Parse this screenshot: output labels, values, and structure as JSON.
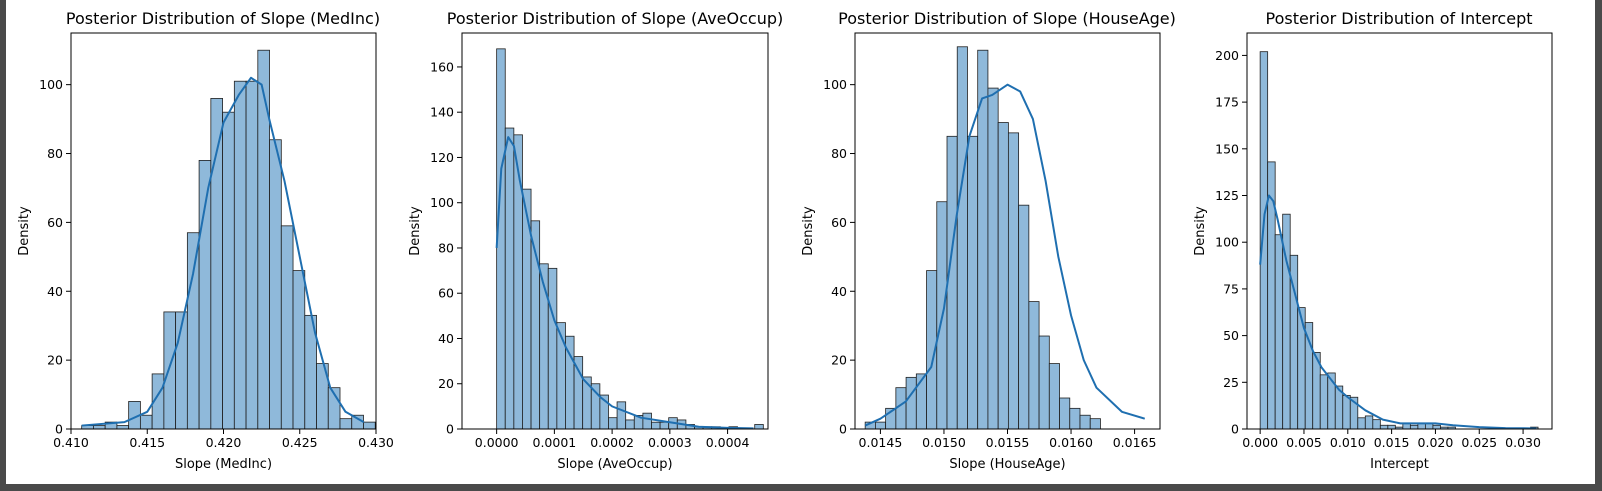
{
  "style": {
    "bar_fill": "#8fb9da",
    "bar_stroke": "#1f1f1f",
    "kde_color": "#1f6fb0"
  },
  "chart_data": [
    {
      "type": "bar",
      "title": "Posterior Distribution of Slope (MedInc)",
      "xlabel": "Slope (MedInc)",
      "ylabel": "Density",
      "xlim": [
        0.41,
        0.43
      ],
      "ylim": [
        0,
        115
      ],
      "xticks": [
        0.41,
        0.415,
        0.42,
        0.425,
        0.43
      ],
      "xtick_labels": [
        "0.410",
        "0.415",
        "0.420",
        "0.425",
        "0.430"
      ],
      "yticks": [
        0,
        20,
        40,
        60,
        80,
        100
      ],
      "yticks_labels": [
        "0",
        "20",
        "40",
        "60",
        "80",
        "100"
      ],
      "bin_start": 0.4107,
      "bin_width": 0.00077,
      "values": [
        1,
        1,
        2,
        1,
        8,
        4,
        16,
        34,
        34,
        57,
        78,
        96,
        92,
        101,
        101,
        110,
        84,
        59,
        46,
        33,
        19,
        12,
        3,
        4,
        2
      ],
      "kde_x": [
        0.4107,
        0.4135,
        0.415,
        0.416,
        0.417,
        0.418,
        0.419,
        0.42,
        0.421,
        0.4218,
        0.4225,
        0.423,
        0.424,
        0.425,
        0.426,
        0.427,
        0.428,
        0.4292
      ],
      "kde_y": [
        1,
        2,
        5,
        12,
        25,
        45,
        70,
        89,
        97,
        102,
        100,
        90,
        72,
        50,
        28,
        12,
        5,
        2
      ]
    },
    {
      "type": "bar",
      "title": "Posterior Distribution of Slope (AveOccup)",
      "xlabel": "Slope (AveOccup)",
      "ylabel": "Density",
      "xlim": [
        -6e-05,
        0.00047
      ],
      "ylim": [
        0,
        175
      ],
      "xticks": [
        0,
        0.0001,
        0.0002,
        0.0003,
        0.0004
      ],
      "xtick_labels": [
        "0.0000",
        "0.0001",
        "0.0002",
        "0.0003",
        "0.0004"
      ],
      "yticks": [
        0,
        20,
        40,
        60,
        80,
        100,
        120,
        140,
        160
      ],
      "yticks_labels": [
        "0",
        "20",
        "40",
        "60",
        "80",
        "100",
        "120",
        "140",
        "160"
      ],
      "bin_start": 0.0,
      "bin_width": 1.49e-05,
      "values": [
        168,
        133,
        130,
        106,
        92,
        73,
        71,
        47,
        41,
        32,
        23,
        20,
        15,
        5,
        12,
        4,
        6,
        7,
        3,
        3,
        5,
        4,
        2,
        1,
        1,
        1,
        0,
        1,
        0,
        0,
        2
      ],
      "kde_x": [
        0.0,
        8e-06,
        2e-05,
        3e-05,
        4e-05,
        6e-05,
        8e-05,
        0.0001,
        0.00012,
        0.00015,
        0.00018,
        0.0002,
        0.00025,
        0.0003,
        0.00035,
        0.0004,
        0.000445
      ],
      "kde_y": [
        80,
        115,
        129,
        125,
        110,
        85,
        65,
        48,
        36,
        22,
        14,
        10,
        5,
        3,
        1,
        0.5,
        0.3
      ]
    },
    {
      "type": "bar",
      "title": "Posterior Distribution of Slope (HouseAge)",
      "xlabel": "Slope (HouseAge)",
      "ylabel": "Density",
      "xlim": [
        0.0143,
        0.0167
      ],
      "ylim": [
        0,
        115
      ],
      "xticks": [
        0.0145,
        0.015,
        0.0155,
        0.016,
        0.0165
      ],
      "xtick_labels": [
        "0.0145",
        "0.0150",
        "0.0155",
        "0.0160",
        "0.0165"
      ],
      "yticks": [
        0,
        20,
        40,
        60,
        80,
        100
      ],
      "yticks_labels": [
        "0",
        "20",
        "40",
        "60",
        "80",
        "100"
      ],
      "bin_start": 0.01438,
      "bin_width": 8.05e-05,
      "values": [
        2,
        2,
        6,
        12,
        15,
        16,
        46,
        66,
        85,
        111,
        85,
        110,
        99,
        89,
        86,
        65,
        37,
        27,
        19,
        9,
        6,
        4,
        3
      ],
      "kde_x": [
        0.01438,
        0.0145,
        0.0147,
        0.0149,
        0.015,
        0.0151,
        0.0152,
        0.0153,
        0.01538,
        0.0155,
        0.0156,
        0.0157,
        0.0158,
        0.0159,
        0.016,
        0.0161,
        0.0162,
        0.0164,
        0.01658
      ],
      "kde_y": [
        1,
        3,
        8,
        18,
        35,
        62,
        85,
        96,
        97,
        100,
        98,
        90,
        72,
        50,
        33,
        20,
        12,
        5,
        3
      ]
    },
    {
      "type": "bar",
      "title": "Posterior Distribution of Intercept",
      "xlabel": "Intercept",
      "ylabel": "Density",
      "xlim": [
        -0.0015,
        0.0333
      ],
      "ylim": [
        0,
        212
      ],
      "xticks": [
        0,
        0.005,
        0.01,
        0.015,
        0.02,
        0.025,
        0.03
      ],
      "xtick_labels": [
        "0.000",
        "0.005",
        "0.010",
        "0.015",
        "0.020",
        "0.025",
        "0.030"
      ],
      "yticks": [
        0,
        25,
        50,
        75,
        100,
        125,
        150,
        175,
        200
      ],
      "yticks_labels": [
        "0",
        "25",
        "50",
        "75",
        "100",
        "125",
        "150",
        "175",
        "200"
      ],
      "bin_start": 0.0,
      "bin_width": 0.000857,
      "values": [
        202,
        143,
        104,
        115,
        93,
        65,
        57,
        41,
        29,
        30,
        23,
        18,
        17,
        6,
        7,
        5,
        2,
        2,
        1,
        3,
        2,
        3,
        3,
        2,
        1,
        1,
        0,
        0,
        0,
        0,
        0,
        0,
        0,
        0,
        0,
        0,
        1
      ],
      "kde_x": [
        0.0,
        0.0005,
        0.001,
        0.0015,
        0.002,
        0.003,
        0.004,
        0.005,
        0.006,
        0.007,
        0.008,
        0.009,
        0.01,
        0.012,
        0.014,
        0.016,
        0.018,
        0.02,
        0.022,
        0.025,
        0.028,
        0.0315
      ],
      "kde_y": [
        88,
        115,
        125,
        122,
        112,
        90,
        72,
        54,
        42,
        33,
        27,
        21,
        17,
        10,
        5,
        3,
        3,
        3,
        2,
        1,
        0.5,
        0.3
      ]
    }
  ]
}
